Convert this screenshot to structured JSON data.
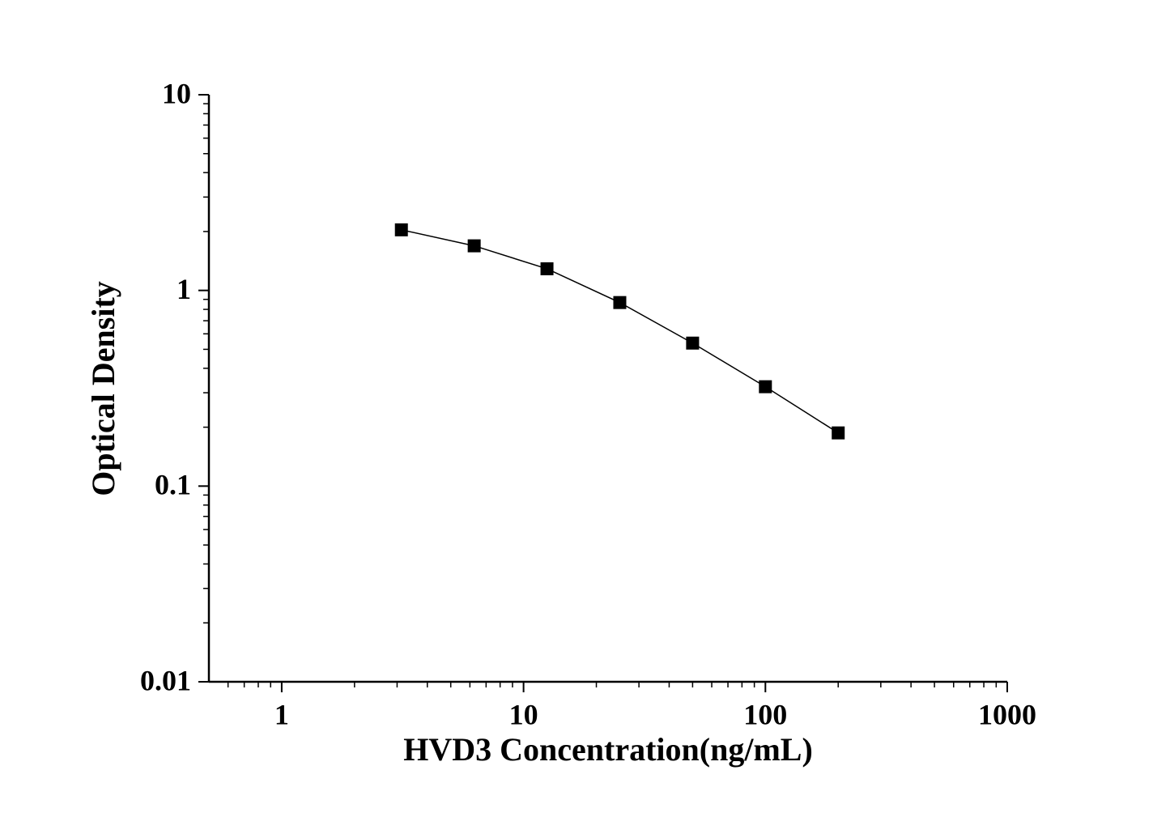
{
  "chart_data": {
    "type": "line",
    "x_label": "HVD3 Concentration(ng/mL)",
    "y_label": "Optical Density",
    "x": [
      3.125,
      6.25,
      12.5,
      25,
      50,
      100,
      200
    ],
    "series": [
      {
        "color": "#000000",
        "marker": "square",
        "values": [
          2.04,
          1.69,
          1.29,
          0.867,
          0.538,
          0.322,
          0.187
        ]
      }
    ],
    "xlim": [
      0.5,
      1000
    ],
    "ylim": [
      0.01,
      10
    ],
    "xticks": [
      1,
      10,
      100,
      1000
    ],
    "yticks": [
      0.01,
      0.1,
      1,
      10
    ],
    "xlog": true,
    "ylog": true,
    "grid": false
  }
}
